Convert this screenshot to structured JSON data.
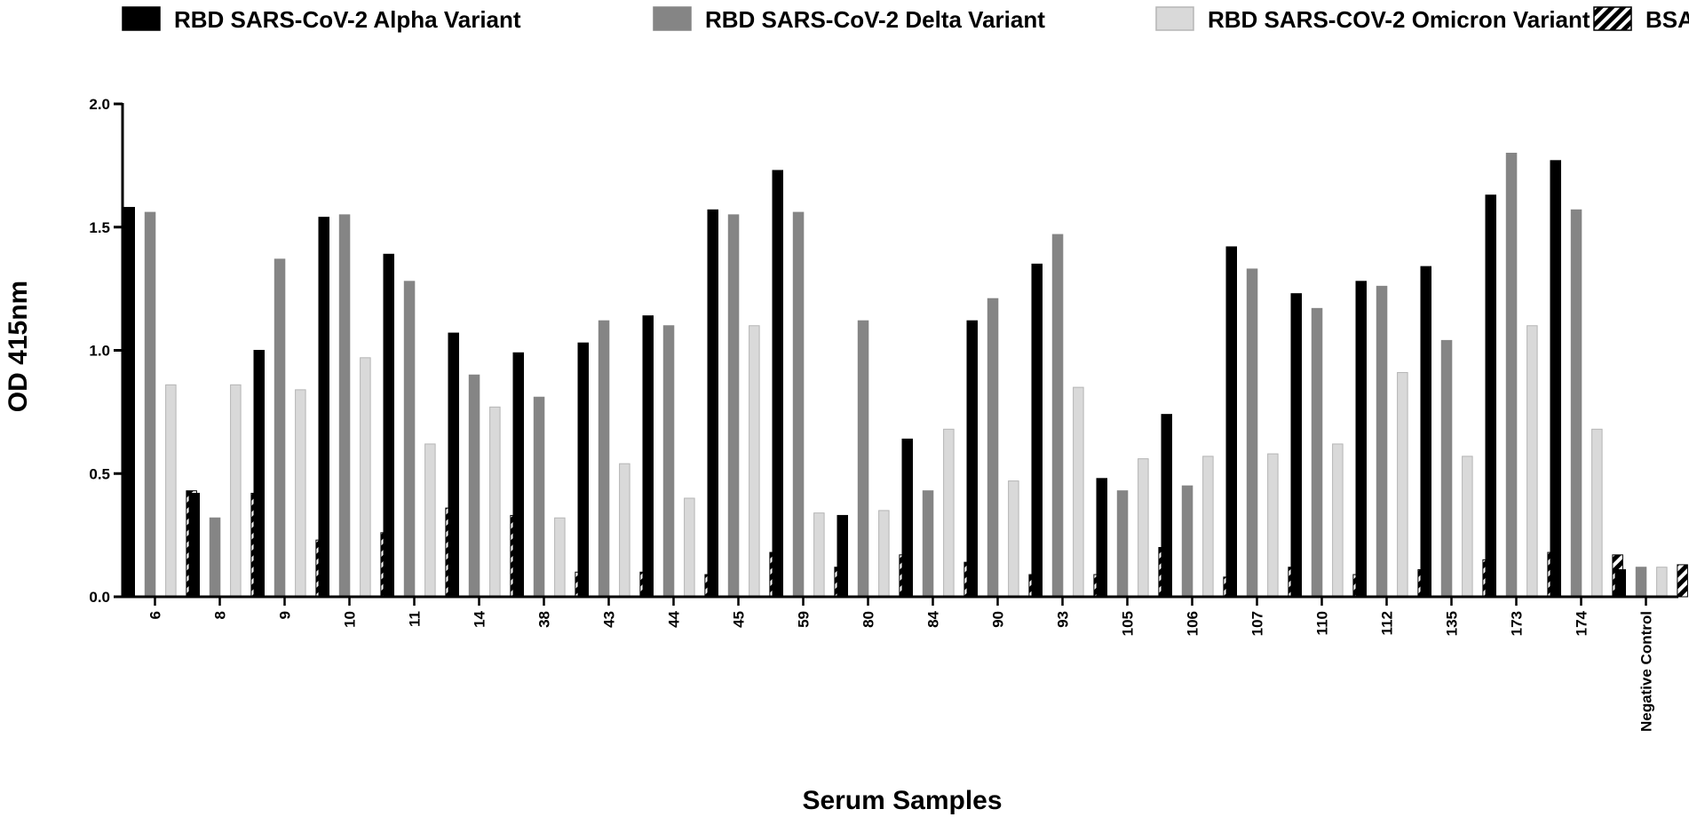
{
  "chart_data": {
    "type": "bar",
    "xlabel": "Serum Samples",
    "ylabel": "OD 415nm",
    "ylim": [
      0,
      2.0
    ],
    "yticks": [
      "0.0",
      "0.5",
      "1.0",
      "1.5",
      "2.0"
    ],
    "legend_position": "top",
    "grid": false,
    "categories": [
      "6",
      "8",
      "9",
      "10",
      "11",
      "14",
      "38",
      "43",
      "44",
      "45",
      "59",
      "80",
      "84",
      "90",
      "93",
      "105",
      "106",
      "107",
      "110",
      "112",
      "135",
      "173",
      "174",
      "Negative Control"
    ],
    "series": [
      {
        "name": "RBD SARS-CoV-2 Alpha Variant",
        "color": "#000000",
        "pattern": "solid",
        "values": [
          1.58,
          0.42,
          1.0,
          1.54,
          1.39,
          1.07,
          0.99,
          1.03,
          1.14,
          1.57,
          1.73,
          0.33,
          0.64,
          1.12,
          1.35,
          0.48,
          0.74,
          1.42,
          1.23,
          1.28,
          1.34,
          1.63,
          1.77,
          0.11
        ]
      },
      {
        "name": "RBD SARS-CoV-2 Delta Variant",
        "color": "#858585",
        "pattern": "solid",
        "values": [
          1.56,
          0.32,
          1.37,
          1.55,
          1.28,
          0.9,
          0.81,
          1.12,
          1.1,
          1.55,
          1.56,
          1.12,
          0.43,
          1.21,
          1.47,
          0.43,
          0.45,
          1.33,
          1.17,
          1.26,
          1.04,
          1.8,
          1.57,
          0.12
        ]
      },
      {
        "name": "RBD SARS-COV-2 Omicron Variant",
        "color": "#d9d9d9",
        "pattern": "solid",
        "values": [
          0.86,
          0.86,
          0.84,
          0.97,
          0.62,
          0.77,
          0.32,
          0.54,
          0.4,
          1.1,
          0.34,
          0.35,
          0.68,
          0.47,
          0.85,
          0.56,
          0.57,
          0.58,
          0.62,
          0.91,
          0.57,
          1.1,
          0.68,
          0.12
        ]
      },
      {
        "name": "BSA",
        "color": "#000000",
        "pattern": "diagonal-hatch",
        "values": [
          0.43,
          0.42,
          0.23,
          0.26,
          0.36,
          0.33,
          0.1,
          0.1,
          0.09,
          0.18,
          0.12,
          0.17,
          0.14,
          0.09,
          0.09,
          0.2,
          0.08,
          0.12,
          0.09,
          0.11,
          0.15,
          0.18,
          0.17,
          0.13
        ]
      }
    ]
  }
}
